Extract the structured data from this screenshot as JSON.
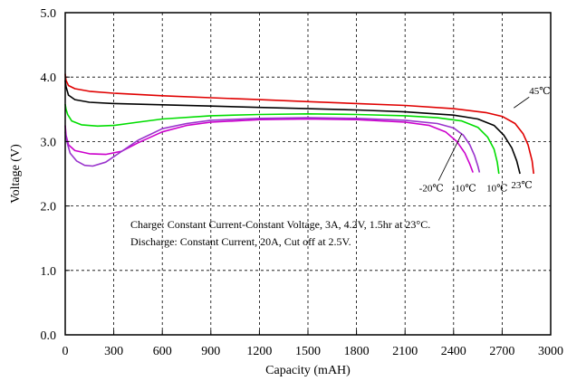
{
  "chart_data": {
    "type": "line",
    "xlabel": "Capacity (mAH)",
    "ylabel": "Voltage (V)",
    "xlim": [
      0,
      3000
    ],
    "ylim": [
      0.0,
      5.0
    ],
    "x_ticks": [
      "0",
      "300",
      "600",
      "900",
      "1200",
      "1500",
      "1800",
      "2100",
      "2400",
      "2700",
      "3000"
    ],
    "y_ticks": [
      "0.0",
      "1.0",
      "2.0",
      "3.0",
      "4.0",
      "5.0"
    ],
    "grid": true,
    "grid_style": "dashed",
    "annotations": [
      "Charge: Constant Current-Constant Voltage, 3A, 4.2V, 1.5hr at 23°C.",
      "Discharge: Constant Current, 20A, Cut off at 2.5V."
    ],
    "series": [
      {
        "name": "45℃",
        "color": "#e00000",
        "label_ref": [
          2800,
          3.55
        ],
        "points": [
          [
            0,
            4.05
          ],
          [
            5,
            3.95
          ],
          [
            20,
            3.87
          ],
          [
            60,
            3.82
          ],
          [
            150,
            3.78
          ],
          [
            300,
            3.75
          ],
          [
            600,
            3.71
          ],
          [
            900,
            3.68
          ],
          [
            1200,
            3.65
          ],
          [
            1500,
            3.62
          ],
          [
            1800,
            3.59
          ],
          [
            2100,
            3.56
          ],
          [
            2400,
            3.51
          ],
          [
            2600,
            3.45
          ],
          [
            2700,
            3.39
          ],
          [
            2780,
            3.28
          ],
          [
            2830,
            3.12
          ],
          [
            2860,
            2.95
          ],
          [
            2885,
            2.7
          ],
          [
            2895,
            2.5
          ]
        ]
      },
      {
        "name": "23℃",
        "color": "#000000",
        "label_ref": [
          2810,
          2.5
        ],
        "points": [
          [
            0,
            3.95
          ],
          [
            5,
            3.85
          ],
          [
            20,
            3.72
          ],
          [
            60,
            3.65
          ],
          [
            150,
            3.61
          ],
          [
            300,
            3.59
          ],
          [
            600,
            3.57
          ],
          [
            900,
            3.55
          ],
          [
            1200,
            3.53
          ],
          [
            1500,
            3.51
          ],
          [
            1800,
            3.49
          ],
          [
            2100,
            3.46
          ],
          [
            2400,
            3.41
          ],
          [
            2550,
            3.35
          ],
          [
            2650,
            3.25
          ],
          [
            2710,
            3.1
          ],
          [
            2760,
            2.9
          ],
          [
            2790,
            2.7
          ],
          [
            2810,
            2.5
          ]
        ]
      },
      {
        "name": "10℃",
        "color": "#00dd00",
        "label_ref": [
          2680,
          2.45
        ],
        "points": [
          [
            0,
            3.58
          ],
          [
            5,
            3.5
          ],
          [
            15,
            3.42
          ],
          [
            40,
            3.32
          ],
          [
            100,
            3.26
          ],
          [
            200,
            3.24
          ],
          [
            300,
            3.25
          ],
          [
            450,
            3.3
          ],
          [
            600,
            3.35
          ],
          [
            900,
            3.4
          ],
          [
            1200,
            3.42
          ],
          [
            1500,
            3.43
          ],
          [
            1800,
            3.42
          ],
          [
            2100,
            3.4
          ],
          [
            2300,
            3.37
          ],
          [
            2450,
            3.32
          ],
          [
            2550,
            3.22
          ],
          [
            2610,
            3.07
          ],
          [
            2650,
            2.88
          ],
          [
            2670,
            2.68
          ],
          [
            2680,
            2.5
          ]
        ]
      },
      {
        "name": "-10℃",
        "color": "#cc00cc",
        "label_ref": [
          2520,
          2.45
        ],
        "points": [
          [
            0,
            3.25
          ],
          [
            5,
            3.1
          ],
          [
            20,
            2.95
          ],
          [
            60,
            2.86
          ],
          [
            150,
            2.81
          ],
          [
            250,
            2.8
          ],
          [
            350,
            2.85
          ],
          [
            450,
            2.98
          ],
          [
            600,
            3.15
          ],
          [
            750,
            3.25
          ],
          [
            900,
            3.3
          ],
          [
            1200,
            3.34
          ],
          [
            1500,
            3.35
          ],
          [
            1800,
            3.34
          ],
          [
            2100,
            3.3
          ],
          [
            2250,
            3.25
          ],
          [
            2350,
            3.15
          ],
          [
            2420,
            3.0
          ],
          [
            2470,
            2.82
          ],
          [
            2500,
            2.65
          ],
          [
            2520,
            2.52
          ]
        ]
      },
      {
        "name": "-20℃",
        "color": "#9933cc",
        "label_ref": [
          2430,
          2.45
        ],
        "points": [
          [
            0,
            3.15
          ],
          [
            10,
            3.0
          ],
          [
            30,
            2.82
          ],
          [
            70,
            2.7
          ],
          [
            120,
            2.63
          ],
          [
            170,
            2.62
          ],
          [
            250,
            2.68
          ],
          [
            350,
            2.85
          ],
          [
            450,
            3.02
          ],
          [
            600,
            3.2
          ],
          [
            750,
            3.28
          ],
          [
            900,
            3.33
          ],
          [
            1200,
            3.36
          ],
          [
            1500,
            3.37
          ],
          [
            1800,
            3.36
          ],
          [
            2100,
            3.33
          ],
          [
            2300,
            3.28
          ],
          [
            2400,
            3.21
          ],
          [
            2460,
            3.1
          ],
          [
            2500,
            2.95
          ],
          [
            2530,
            2.78
          ],
          [
            2550,
            2.62
          ],
          [
            2560,
            2.52
          ]
        ]
      }
    ]
  }
}
